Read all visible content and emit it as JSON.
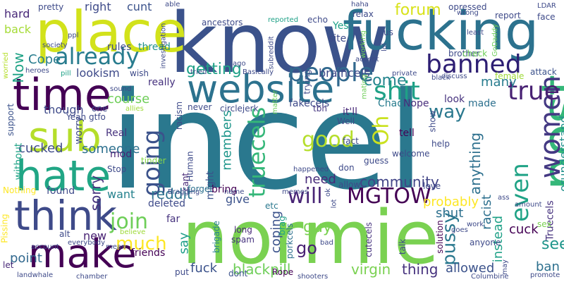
{
  "word_cloud": {
    "words": [
      {
        "text": "incel",
        "color": "#2a788e"
      },
      {
        "text": "normie",
        "color": "#7ad151"
      },
      {
        "text": "know",
        "color": "#3b528b"
      },
      {
        "text": "fucking",
        "color": "#2c728e"
      },
      {
        "text": "place",
        "color": "#d2e21b"
      },
      {
        "text": "website",
        "color": "#2c728e"
      },
      {
        "text": "time",
        "color": "#440154"
      },
      {
        "text": "post",
        "color": "#35b779"
      },
      {
        "text": "hate",
        "color": "#21a685"
      },
      {
        "text": "sub",
        "color": "#b5de2b"
      },
      {
        "text": "think",
        "color": "#3e4a89"
      },
      {
        "text": "make",
        "color": "#440154"
      },
      {
        "text": "banned",
        "color": "#2d1e73"
      },
      {
        "text": "women",
        "color": "#443983"
      },
      {
        "text": "already",
        "color": "#287c8e"
      },
      {
        "text": "people",
        "color": "#31688e"
      },
      {
        "text": "shit",
        "color": "#1fa187"
      },
      {
        "text": "true",
        "color": "#482173"
      },
      {
        "text": "going",
        "color": "#3b528b"
      },
      {
        "text": "truecels",
        "color": "#35b779"
      },
      {
        "text": "even",
        "color": "#20a386"
      },
      {
        "text": "good",
        "color": "#b5de2b"
      },
      {
        "text": "MGTOW",
        "color": "#440154"
      },
      {
        "text": "will",
        "color": "#482475"
      },
      {
        "text": "getting",
        "color": "#1fa187"
      },
      {
        "text": "forum",
        "color": "#d8e219"
      },
      {
        "text": "Oh",
        "color": "#cae11f"
      },
      {
        "text": "come",
        "color": "#25858e"
      },
      {
        "text": "way",
        "color": "#2a788e"
      },
      {
        "text": "join",
        "color": "#6ece58"
      },
      {
        "text": "much",
        "color": "#fde725"
      },
      {
        "text": "community",
        "color": "#414487"
      },
      {
        "text": "pussy",
        "color": "#2a788e"
      },
      {
        "text": "Now",
        "color": "#20a386"
      },
      {
        "text": "sorry",
        "color": "#46327e"
      },
      {
        "text": "reddit",
        "color": "#2c728e"
      },
      {
        "text": "Cope",
        "color": "#287c8e"
      },
      {
        "text": "lookism",
        "color": "#3e4a89"
      },
      {
        "text": "though",
        "color": "#3e4a89"
      },
      {
        "text": "course",
        "color": "#6ece58"
      },
      {
        "text": "cucked",
        "color": "#3e4a89"
      },
      {
        "text": "someone",
        "color": "#2d708e"
      },
      {
        "text": "members",
        "color": "#1f968b"
      },
      {
        "text": "need",
        "color": "#472c7a"
      },
      {
        "text": "probably",
        "color": "#fde725"
      },
      {
        "text": "anything",
        "color": "#2d708e"
      },
      {
        "text": "racist",
        "color": "#2d708e"
      },
      {
        "text": "instead",
        "color": "#1fa187"
      },
      {
        "text": "shut",
        "color": "#2d708e"
      },
      {
        "text": "cuck",
        "color": "#440154"
      },
      {
        "text": "see",
        "color": "#1f968b"
      },
      {
        "text": "virgin",
        "color": "#7ad151"
      },
      {
        "text": "thing",
        "color": "#46327e"
      },
      {
        "text": "allowed",
        "color": "#3b528b"
      },
      {
        "text": "blackpill",
        "color": "#6ece58"
      },
      {
        "text": "fuck",
        "color": "#3b528b"
      },
      {
        "text": "point",
        "color": "#31688e"
      },
      {
        "text": "coping",
        "color": "#3b528b"
      },
      {
        "text": "guy",
        "color": "#7ad151"
      },
      {
        "text": "go",
        "color": "#482173"
      },
      {
        "text": "give",
        "color": "#3b528b"
      },
      {
        "text": "new",
        "color": "#482173"
      },
      {
        "text": "want",
        "color": "#26828e"
      },
      {
        "text": "say",
        "color": "#1f9e89"
      },
      {
        "text": "ban",
        "color": "#2d708e"
      },
      {
        "text": "many",
        "color": "#287c8e"
      },
      {
        "text": "right",
        "color": "#3e4a89"
      },
      {
        "text": "cunt",
        "color": "#3b528b"
      },
      {
        "text": "hard",
        "color": "#482878"
      },
      {
        "text": "back",
        "color": "#a5db36"
      },
      {
        "text": "rules",
        "color": "#3e4a89"
      },
      {
        "text": "thread",
        "color": "#21918c"
      },
      {
        "text": "Chad",
        "color": "#287c8e"
      },
      {
        "text": "Nope",
        "color": "#472d7b"
      },
      {
        "text": "braincels",
        "color": "#3e4a89"
      },
      {
        "text": "fakecels",
        "color": "#3e4a89"
      },
      {
        "text": "Truecels",
        "color": "#46327e"
      },
      {
        "text": "orunderstand",
        "color": "#21918c"
      },
      {
        "text": "really",
        "color": "#46327e"
      },
      {
        "text": "made",
        "color": "#2d708e"
      },
      {
        "text": "tell",
        "color": "#440154"
      },
      {
        "text": "tbh",
        "color": "#453781"
      },
      {
        "text": "it'll",
        "color": "#482878"
      },
      {
        "text": "Well",
        "color": "#3e4a89"
      },
      {
        "text": "look",
        "color": "#46327e"
      },
      {
        "text": "Real",
        "color": "#46327e"
      },
      {
        "text": "mod",
        "color": "#482173"
      },
      {
        "text": "Stop",
        "color": "#3e4a89"
      },
      {
        "text": "tinder",
        "color": "#86d549"
      },
      {
        "text": "Yeah",
        "color": "#3e4a89"
      },
      {
        "text": "worry",
        "color": "#3e4a89"
      },
      {
        "text": "without",
        "color": "#20a386"
      },
      {
        "text": "support",
        "color": "#3b528b"
      },
      {
        "text": "Nothing",
        "color": "#fde725"
      },
      {
        "text": "found",
        "color": "#3e4a89"
      },
      {
        "text": "might",
        "color": "#3b528b"
      },
      {
        "text": "Human",
        "color": "#3e4a89"
      },
      {
        "text": "cant",
        "color": "#482878"
      },
      {
        "text": "forget",
        "color": "#2d708e"
      },
      {
        "text": "bring",
        "color": "#440154"
      },
      {
        "text": "deleted",
        "color": "#3e4a89"
      },
      {
        "text": "far",
        "color": "#46327e"
      },
      {
        "text": "friends",
        "color": "#440154"
      },
      {
        "text": "put",
        "color": "#3e4a89"
      },
      {
        "text": "etc",
        "color": "#2a788e"
      },
      {
        "text": "spam",
        "color": "#46327e"
      },
      {
        "text": "long",
        "color": "#482878"
      },
      {
        "text": "brigade",
        "color": "#26828e"
      },
      {
        "text": "dont",
        "color": "#3b528b"
      },
      {
        "text": "Rope",
        "color": "#440154"
      },
      {
        "text": "brag",
        "color": "#1f9e89"
      },
      {
        "text": "porkcels",
        "color": "#2d708e"
      },
      {
        "text": "cutecels",
        "color": "#46327e"
      },
      {
        "text": "solution",
        "color": "#440154"
      },
      {
        "text": "talk",
        "color": "#3e4a89"
      },
      {
        "text": "anyone",
        "color": "#3e4a89"
      },
      {
        "text": "work",
        "color": "#3e4a89"
      },
      {
        "text": "sex",
        "color": "#7ad151"
      },
      {
        "text": "amount",
        "color": "#3e4a89"
      },
      {
        "text": "ass",
        "color": "#3e4a89"
      },
      {
        "text": "promote",
        "color": "#3e4a89"
      },
      {
        "text": "Columbine",
        "color": "#3e4a89"
      },
      {
        "text": "shooters",
        "color": "#3e4a89"
      },
      {
        "text": "chamber",
        "color": "#3e4a89"
      },
      {
        "text": "landwhale",
        "color": "#3e4a89"
      },
      {
        "text": "let",
        "color": "#482878"
      },
      {
        "text": "account",
        "color": "#3e4a89"
      },
      {
        "text": "Pissing",
        "color": "#fde725"
      },
      {
        "text": "everybody",
        "color": "#3e4a89"
      },
      {
        "text": "believe",
        "color": "#9fda3a"
      },
      {
        "text": "mean",
        "color": "#3e4a89"
      },
      {
        "text": "alt",
        "color": "#3e4a89"
      },
      {
        "text": "pretty",
        "color": "#3e4a89"
      },
      {
        "text": "society",
        "color": "#3e4a89"
      },
      {
        "text": "ppl",
        "color": "#3e4a89"
      },
      {
        "text": "worried",
        "color": "#b5de2b"
      },
      {
        "text": "heroes",
        "color": "#3e4a89"
      },
      {
        "text": "pill",
        "color": "#1fa187"
      },
      {
        "text": "investigation",
        "color": "#3e4a89"
      },
      {
        "text": "able",
        "color": "#3e4a89"
      },
      {
        "text": "ancestors",
        "color": "#3e4a89"
      },
      {
        "text": "reported",
        "color": "#1fa187"
      },
      {
        "text": "echo",
        "color": "#3e4a89"
      },
      {
        "text": "site",
        "color": "#3e4a89"
      },
      {
        "text": "Yes",
        "color": "#1fa187"
      },
      {
        "text": "working",
        "color": "#6ece58"
      },
      {
        "text": "relax",
        "color": "#3e4a89"
      },
      {
        "text": "haha",
        "color": "#3e4a89"
      },
      {
        "text": "subreddit",
        "color": "#3e4a89"
      },
      {
        "text": "ago",
        "color": "#3e4a89"
      },
      {
        "text": "Basically",
        "color": "#3e4a89"
      },
      {
        "text": "tried",
        "color": "#3e4a89"
      },
      {
        "text": "trying",
        "color": "#3e4a89"
      },
      {
        "text": "mating",
        "color": "#6ece58"
      },
      {
        "text": "accept",
        "color": "#3e4a89"
      },
      {
        "text": "private",
        "color": "#3e4a89"
      },
      {
        "text": "lol",
        "color": "#3e4a89"
      },
      {
        "text": "us",
        "color": "#3e4a89"
      },
      {
        "text": "opressed",
        "color": "#3e4a89"
      },
      {
        "text": "wrong",
        "color": "#3e4a89"
      },
      {
        "text": "report",
        "color": "#3e4a89"
      },
      {
        "text": "LDAR",
        "color": "#3e4a89"
      },
      {
        "text": "face",
        "color": "#3e4a89"
      },
      {
        "text": "least",
        "color": "#3e4a89"
      },
      {
        "text": "GoDaddy",
        "color": "#6ece58"
      },
      {
        "text": "brother",
        "color": "#3e4a89"
      },
      {
        "text": "check",
        "color": "#6ece58"
      },
      {
        "text": "discuss",
        "color": "#3e4a89"
      },
      {
        "text": "black",
        "color": "#3e4a89"
      },
      {
        "text": "female",
        "color": "#9fda3a"
      },
      {
        "text": "attack",
        "color": "#3b528b"
      },
      {
        "text": "wish",
        "color": "#3e4a89"
      },
      {
        "text": "sound",
        "color": "#3e4a89"
      },
      {
        "text": "allies",
        "color": "#9fda3a"
      },
      {
        "text": "gtfo",
        "color": "#3e4a89"
      },
      {
        "text": "never",
        "color": "#3e4a89"
      },
      {
        "text": "circlejerk",
        "color": "#3e4a89"
      },
      {
        "text": "matter",
        "color": "#6ece58"
      },
      {
        "text": "racism",
        "color": "#3e4a89"
      },
      {
        "text": "Bragging",
        "color": "#3e4a89"
      },
      {
        "text": "show",
        "color": "#3e4a89"
      },
      {
        "text": "welcome",
        "color": "#3e4a89"
      },
      {
        "text": "fact",
        "color": "#3e4a89"
      },
      {
        "text": "help",
        "color": "#3e4a89"
      },
      {
        "text": "don",
        "color": "#3e4a89"
      },
      {
        "text": "allow",
        "color": "#3e4a89"
      },
      {
        "text": "guess",
        "color": "#3e4a89"
      },
      {
        "text": "happened",
        "color": "#3e4a89"
      },
      {
        "text": "memes",
        "color": "#3e4a89"
      },
      {
        "text": "ok",
        "color": "#3e4a89"
      },
      {
        "text": "name",
        "color": "#3e4a89"
      },
      {
        "text": "lot",
        "color": "#3e4a89"
      },
      {
        "text": "bad",
        "color": "#3e4a89"
      },
      {
        "text": "love",
        "color": "#3e4a89"
      },
      {
        "text": "goes",
        "color": "#3e4a89"
      },
      {
        "text": "may",
        "color": "#3e4a89"
      },
      {
        "text": "one",
        "color": "#3e4a89"
      }
    ]
  }
}
